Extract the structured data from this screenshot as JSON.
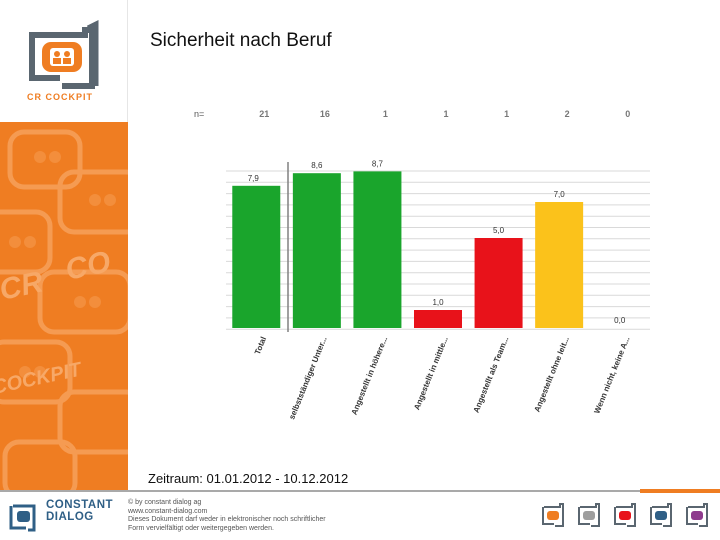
{
  "header": {
    "logo_text": "CR COCKPIT",
    "title": "Sicherheit nach Beruf"
  },
  "period": "Zeitraum: 01.01.2012 - 10.12.2012",
  "colors": {
    "brand_orange": "#ef7d22",
    "brand_gray": "#5a6670",
    "green": "#1aa52c",
    "red": "#e8121a",
    "yellow": "#fbc21b"
  },
  "chart_data": {
    "type": "bar",
    "n_label": "n=",
    "n_values": [
      "21",
      "16",
      "1",
      "1",
      "1",
      "2",
      "0"
    ],
    "categories": [
      "Total",
      "selbstständiger Unter...",
      "Angestellt in höhere...",
      "Angestellt in mittle...",
      "Angestellt als Team...",
      "Angestellt ohne leit...",
      "Wenn nicht, keine A..."
    ],
    "values": [
      7.9,
      8.6,
      8.7,
      1.0,
      5.0,
      7.0,
      0.0
    ],
    "value_labels": [
      "7,9",
      "8,6",
      "8,7",
      "1,0",
      "5,0",
      "7,0",
      "0,0"
    ],
    "bar_colors": [
      "#1aa52c",
      "#1aa52c",
      "#1aa52c",
      "#e8121a",
      "#e8121a",
      "#fbc21b",
      "#fbc21b"
    ],
    "ylim": [
      0,
      10
    ],
    "grid": true,
    "title": "",
    "xlabel": "",
    "ylabel": ""
  },
  "footer": {
    "brand_line1": "CONSTANT",
    "brand_line2": "DIALOG",
    "copyright_lines": [
      "© by constant dialog ag",
      "www.constant-dialog.com",
      "Dieses Dokument darf weder in elektronischer noch schriftlicher",
      "Form vervielfältigt oder weitergegeben werden."
    ],
    "product_logos": [
      {
        "name": "CR COCKPIT",
        "color": "#ef7d22"
      },
      {
        "name": "CD Light",
        "color": "#9e9e9e"
      },
      {
        "name": "CD Voice",
        "color": "#e8121a"
      },
      {
        "name": "Dialog Development",
        "color": "#2f5f86"
      },
      {
        "name": "Dialog Feedback",
        "color": "#8e3b8e"
      }
    ]
  }
}
